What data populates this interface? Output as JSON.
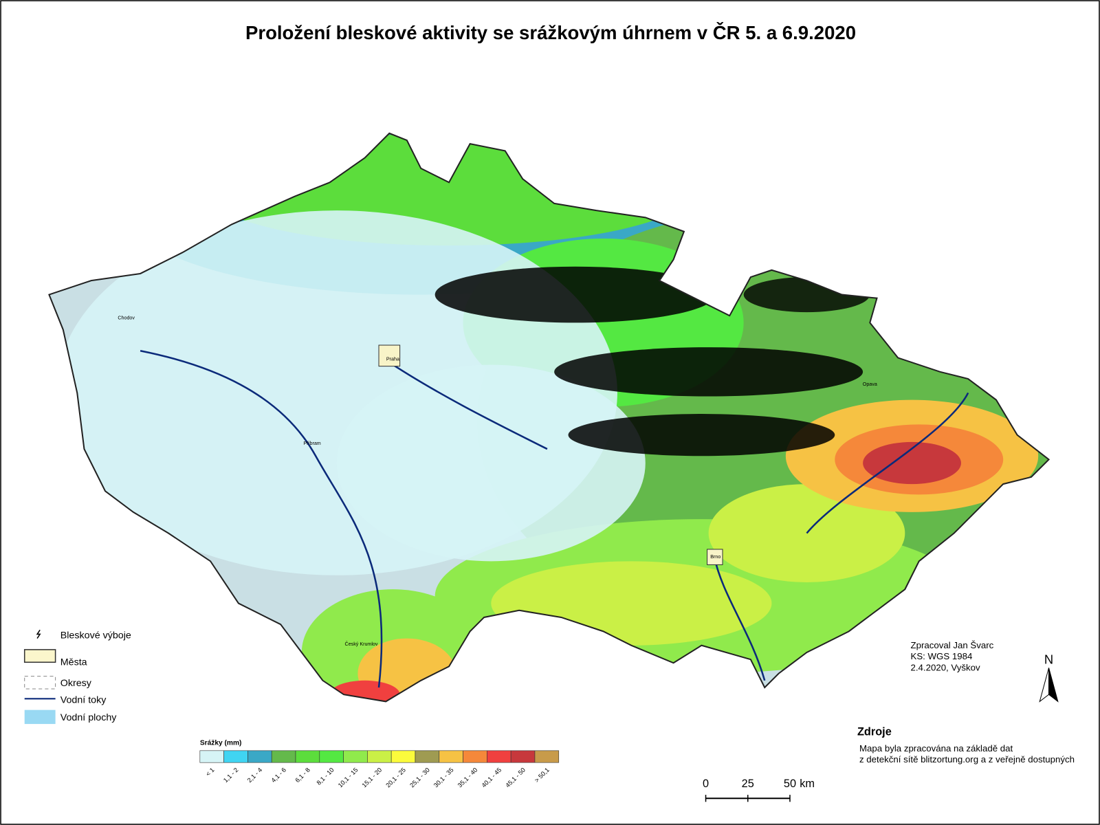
{
  "title": "Proložení bleskové aktivity se srážkovým úhrnem v ČR 5. a 6.9.2020",
  "legend": {
    "items": [
      "Bleskové výboje",
      "Města",
      "Okresy",
      "Vodní toky",
      "Vodní plochy"
    ]
  },
  "precipitation_scale": {
    "title": "Srážky (mm)",
    "classes": [
      {
        "label": "< 1",
        "color": "#d6f4f6"
      },
      {
        "label": "1,1 - 2",
        "color": "#40d4f2"
      },
      {
        "label": "2,1 - 4",
        "color": "#3aa8c6"
      },
      {
        "label": "4,1 - 6",
        "color": "#64b94b"
      },
      {
        "label": "6,1 - 8",
        "color": "#5cdd3c"
      },
      {
        "label": "8,1 - 10",
        "color": "#54e842"
      },
      {
        "label": "10,1 - 15",
        "color": "#90ea4c"
      },
      {
        "label": "15,1 - 20",
        "color": "#caf046"
      },
      {
        "label": "20,1 - 25",
        "color": "#fbfb3c"
      },
      {
        "label": "25,1 - 30",
        "color": "#9f9b52"
      },
      {
        "label": "30,1 - 35",
        "color": "#f6c244"
      },
      {
        "label": "35,1 - 40",
        "color": "#f5883a"
      },
      {
        "label": "40,1 - 45",
        "color": "#f0403f"
      },
      {
        "label": "45,1 - 50",
        "color": "#c7383c"
      },
      {
        "label": "> 50,1",
        "color": "#c89b4a"
      }
    ]
  },
  "cities": [
    "Praha",
    "Brno",
    "Chodov",
    "Příbram",
    "Český Krumlov",
    "Opava"
  ],
  "credits": [
    "Zpracoval Jan Švarc",
    "KS: WGS 1984",
    "2.4.2020, Vyškov"
  ],
  "sources": {
    "title": "Zdroje",
    "lines": [
      "Mapa byla zpracována na základě dat",
      "z detekční sítě blitzortung.org a z veřejně dostupných"
    ]
  },
  "scale_bar": {
    "ticks": [
      0,
      25,
      50
    ],
    "unit": "km"
  },
  "north": "N"
}
